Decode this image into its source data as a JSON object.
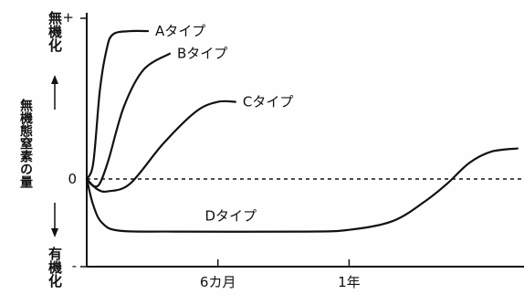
{
  "chart_data": {
    "type": "line",
    "y_axis": {
      "top_sign": "+",
      "bottom_sign": "-",
      "zero_label": "0",
      "top_label": "無機化",
      "center_label": "無機態窒素の量",
      "bottom_label": "有機化"
    },
    "x_axis": {
      "ticks": [
        {
          "label": "6カ月",
          "x": 6
        },
        {
          "label": "1年",
          "x": 12
        }
      ],
      "range": [
        0,
        20
      ]
    },
    "ylim": [
      -1,
      1
    ],
    "zero_line": "dashed",
    "series": [
      {
        "name": "Aタイプ",
        "points": [
          [
            0,
            0
          ],
          [
            0.3,
            0.1
          ],
          [
            0.6,
            0.55
          ],
          [
            0.9,
            0.8
          ],
          [
            1.2,
            0.9
          ],
          [
            2.0,
            0.92
          ],
          [
            2.8,
            0.92
          ]
        ]
      },
      {
        "name": "Bタイプ",
        "points": [
          [
            0,
            0
          ],
          [
            0.3,
            -0.08
          ],
          [
            0.6,
            -0.05
          ],
          [
            1.0,
            0.12
          ],
          [
            1.7,
            0.45
          ],
          [
            2.6,
            0.68
          ],
          [
            3.8,
            0.78
          ]
        ]
      },
      {
        "name": "Cタイプ",
        "points": [
          [
            0,
            0
          ],
          [
            0.5,
            -0.12
          ],
          [
            1.0,
            -0.14
          ],
          [
            2.0,
            -0.05
          ],
          [
            3.5,
            0.22
          ],
          [
            5.0,
            0.42
          ],
          [
            6.0,
            0.48
          ],
          [
            6.8,
            0.48
          ]
        ]
      },
      {
        "name": "Dタイプ",
        "points": [
          [
            0,
            0
          ],
          [
            0.3,
            -0.3
          ],
          [
            0.7,
            -0.5
          ],
          [
            1.5,
            -0.59
          ],
          [
            4,
            -0.6
          ],
          [
            10,
            -0.6
          ],
          [
            12,
            -0.58
          ],
          [
            14,
            -0.48
          ],
          [
            15.5,
            -0.25
          ],
          [
            16.5,
            -0.05
          ],
          [
            17.5,
            0.1
          ],
          [
            18.5,
            0.17
          ],
          [
            19.7,
            0.19
          ]
        ]
      }
    ]
  }
}
